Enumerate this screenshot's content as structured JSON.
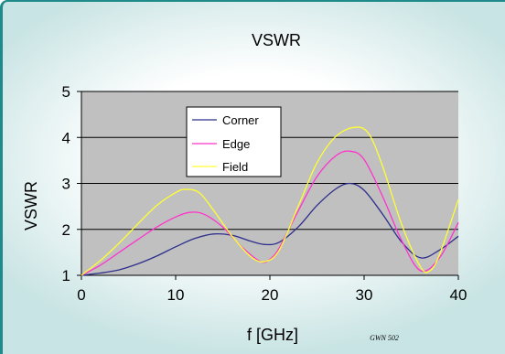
{
  "chart_data": {
    "type": "line",
    "title": "VSWR",
    "xlabel": "f [GHz]",
    "ylabel": "VSWR",
    "xlim": [
      0,
      40
    ],
    "ylim": [
      1,
      5
    ],
    "xticks": [
      0,
      10,
      20,
      30,
      40
    ],
    "yticks": [
      1,
      2,
      3,
      4,
      5
    ],
    "grid": "horizontal",
    "legend_position": "upper-left-inside",
    "plot_background": "#c0c0c0",
    "series": [
      {
        "name": "Corner",
        "color": "#2e2e8c",
        "x": [
          0,
          2,
          4,
          6,
          8,
          10,
          12,
          14,
          16,
          18,
          19.5,
          21,
          23,
          25,
          27,
          28.5,
          30,
          32,
          34,
          36,
          38,
          40
        ],
        "y": [
          1.0,
          1.05,
          1.12,
          1.25,
          1.42,
          1.62,
          1.8,
          1.9,
          1.87,
          1.74,
          1.67,
          1.72,
          2.05,
          2.52,
          2.88,
          3.0,
          2.85,
          2.32,
          1.72,
          1.38,
          1.55,
          1.85
        ]
      },
      {
        "name": "Edge",
        "color": "#ff33cc",
        "x": [
          0,
          2,
          4,
          6,
          8,
          10,
          11.5,
          13,
          15,
          17,
          19,
          20,
          21,
          23,
          25,
          27,
          28.5,
          30,
          32,
          34,
          36,
          38,
          40
        ],
        "y": [
          1.0,
          1.22,
          1.5,
          1.78,
          2.05,
          2.27,
          2.37,
          2.33,
          2.05,
          1.62,
          1.3,
          1.35,
          1.6,
          2.4,
          3.15,
          3.6,
          3.7,
          3.52,
          2.7,
          1.75,
          1.1,
          1.38,
          2.15
        ]
      },
      {
        "name": "Field",
        "color": "#ffff33",
        "x": [
          0,
          2,
          4,
          6,
          8,
          10,
          11,
          12.5,
          14,
          16,
          18,
          19.5,
          21,
          23,
          25,
          27,
          29,
          30.5,
          32,
          34,
          36,
          37,
          38,
          40
        ],
        "y": [
          1.0,
          1.32,
          1.7,
          2.12,
          2.52,
          2.8,
          2.87,
          2.8,
          2.42,
          1.85,
          1.4,
          1.3,
          1.55,
          2.5,
          3.45,
          4.02,
          4.22,
          4.08,
          3.35,
          2.1,
          1.18,
          1.1,
          1.45,
          2.65
        ]
      }
    ],
    "annotation": "GWN 502"
  },
  "colors": {
    "plot_background": "#c0c0c0",
    "gridline": "#000000",
    "frame_accent": "#1f8a8a",
    "legend_background": "#ffffff"
  }
}
